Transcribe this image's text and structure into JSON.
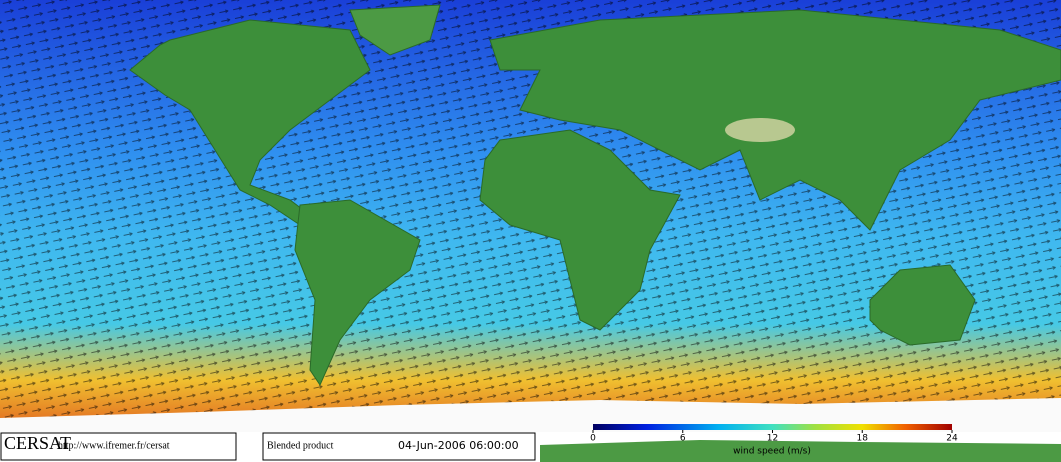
{
  "logo": "CERSAT",
  "url": "http://www.ifremer.fr/cersat",
  "product": "Blended product",
  "timestamp": "04-Jun-2006 06:00:00",
  "colorbar": {
    "label": "wind speed (m/s)",
    "lim": [
      0,
      24
    ],
    "ticks": [
      0,
      6,
      12,
      18,
      24
    ]
  }
}
